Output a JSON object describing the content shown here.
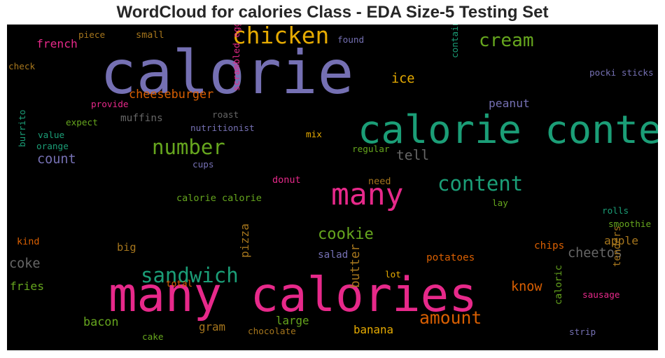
{
  "chart_data": {
    "type": "wordcloud",
    "title": "WordCloud for calories Class - EDA Size-5 Testing Set",
    "background": "#000000",
    "palette": [
      "#7570b3",
      "#e7298a",
      "#1b9e77",
      "#d95f02",
      "#66a61e",
      "#e6ab02",
      "#a6761d",
      "#666666"
    ],
    "words": [
      {
        "text": "calorie",
        "weight": 1.0,
        "color": "#7570b3"
      },
      {
        "text": "many calories",
        "weight": 0.84,
        "color": "#e7298a"
      },
      {
        "text": "calorie content",
        "weight": 0.73,
        "color": "#1b9e77"
      },
      {
        "text": "many",
        "weight": 0.6,
        "color": "#e7298a"
      },
      {
        "text": "chicken",
        "weight": 0.48,
        "color": "#e6ab02"
      },
      {
        "text": "number",
        "weight": 0.43,
        "color": "#66a61e"
      },
      {
        "text": "content",
        "weight": 0.43,
        "color": "#1b9e77"
      },
      {
        "text": "sandwich",
        "weight": 0.43,
        "color": "#1b9e77"
      },
      {
        "text": "cream",
        "weight": 0.39,
        "color": "#66a61e"
      },
      {
        "text": "amount",
        "weight": 0.37,
        "color": "#d95f02"
      },
      {
        "text": "cookie",
        "weight": 0.33,
        "color": "#66a61e"
      },
      {
        "text": "tell",
        "weight": 0.29,
        "color": "#666666"
      },
      {
        "text": "count",
        "weight": 0.27,
        "color": "#7570b3"
      },
      {
        "text": "ice",
        "weight": 0.27,
        "color": "#e6ab02"
      },
      {
        "text": "know",
        "weight": 0.27,
        "color": "#d95f02"
      },
      {
        "text": "cheetos",
        "weight": 0.27,
        "color": "#666666"
      },
      {
        "text": "coke",
        "weight": 0.27,
        "color": "#666666"
      },
      {
        "text": "butter",
        "weight": 0.25,
        "color": "#a6761d"
      },
      {
        "text": "cheeseburger",
        "weight": 0.24,
        "color": "#d95f02"
      },
      {
        "text": "bacon",
        "weight": 0.24,
        "color": "#66a61e"
      },
      {
        "text": "french",
        "weight": 0.23,
        "color": "#e7298a"
      },
      {
        "text": "peanut",
        "weight": 0.23,
        "color": "#7570b3"
      },
      {
        "text": "pizza",
        "weight": 0.23,
        "color": "#a6761d"
      },
      {
        "text": "fries",
        "weight": 0.23,
        "color": "#66a61e"
      },
      {
        "text": "apple",
        "weight": 0.23,
        "color": "#a6761d"
      },
      {
        "text": "gram",
        "weight": 0.22,
        "color": "#a6761d"
      },
      {
        "text": "banana",
        "weight": 0.22,
        "color": "#e6ab02"
      },
      {
        "text": "large",
        "weight": 0.22,
        "color": "#66a61e"
      },
      {
        "text": "big",
        "weight": 0.21,
        "color": "#a6761d"
      },
      {
        "text": "muffins",
        "weight": 0.19,
        "color": "#666666"
      },
      {
        "text": "salad",
        "weight": 0.19,
        "color": "#7570b3"
      },
      {
        "text": "potatoes",
        "weight": 0.19,
        "color": "#d95f02"
      },
      {
        "text": "chips",
        "weight": 0.19,
        "color": "#d95f02"
      },
      {
        "text": "tenders",
        "weight": 0.18,
        "color": "#a6761d"
      },
      {
        "text": "small",
        "weight": 0.17,
        "color": "#a6761d"
      },
      {
        "text": "donut",
        "weight": 0.17,
        "color": "#e7298a"
      },
      {
        "text": "need",
        "weight": 0.17,
        "color": "#a6761d"
      },
      {
        "text": "kind",
        "weight": 0.17,
        "color": "#d95f02"
      },
      {
        "text": "calorie calorie",
        "weight": 0.17,
        "color": "#66a61e"
      },
      {
        "text": "caloric",
        "weight": 0.17,
        "color": "#66a61e"
      },
      {
        "text": "roast",
        "weight": 0.15,
        "color": "#666666"
      },
      {
        "text": "nutritionist",
        "weight": 0.15,
        "color": "#7570b3"
      },
      {
        "text": "scrambled eggs",
        "weight": 0.15,
        "color": "#e7298a"
      },
      {
        "text": "provide",
        "weight": 0.15,
        "color": "#e7298a"
      },
      {
        "text": "expect",
        "weight": 0.15,
        "color": "#66a61e"
      },
      {
        "text": "value",
        "weight": 0.15,
        "color": "#1b9e77"
      },
      {
        "text": "orange",
        "weight": 0.15,
        "color": "#1b9e77"
      },
      {
        "text": "burrito",
        "weight": 0.15,
        "color": "#1b9e77"
      },
      {
        "text": "cups",
        "weight": 0.15,
        "color": "#7570b3"
      },
      {
        "text": "regular",
        "weight": 0.15,
        "color": "#66a61e"
      },
      {
        "text": "mix",
        "weight": 0.15,
        "color": "#e6ab02"
      },
      {
        "text": "contain",
        "weight": 0.15,
        "color": "#1b9e77"
      },
      {
        "text": "found",
        "weight": 0.15,
        "color": "#7570b3"
      },
      {
        "text": "piece",
        "weight": 0.15,
        "color": "#a6761d"
      },
      {
        "text": "check",
        "weight": 0.15,
        "color": "#a6761d"
      },
      {
        "text": "pocki sticks",
        "weight": 0.15,
        "color": "#7570b3"
      },
      {
        "text": "lay",
        "weight": 0.15,
        "color": "#66a61e"
      },
      {
        "text": "rolls",
        "weight": 0.15,
        "color": "#1b9e77"
      },
      {
        "text": "smoothie",
        "weight": 0.15,
        "color": "#66a61e"
      },
      {
        "text": "sausage",
        "weight": 0.15,
        "color": "#e7298a"
      },
      {
        "text": "strip",
        "weight": 0.15,
        "color": "#7570b3"
      },
      {
        "text": "lot",
        "weight": 0.15,
        "color": "#e6ab02"
      },
      {
        "text": "total",
        "weight": 0.15,
        "color": "#d95f02"
      },
      {
        "text": "cake",
        "weight": 0.15,
        "color": "#66a61e"
      },
      {
        "text": "chocolate",
        "weight": 0.15,
        "color": "#a6761d"
      }
    ]
  }
}
